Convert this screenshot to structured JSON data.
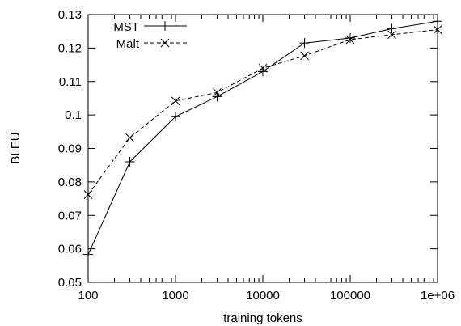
{
  "chart_data": {
    "type": "line",
    "title": "",
    "xlabel": "training tokens",
    "ylabel": "BLEU",
    "x_scale": "log",
    "xlim": [
      100,
      1000000
    ],
    "ylim": [
      0.05,
      0.13
    ],
    "xticks": [
      100,
      1000,
      10000,
      100000,
      1000000
    ],
    "xtick_labels": [
      "100",
      "1000",
      "10000",
      "100000",
      "1e+06"
    ],
    "yticks": [
      0.05,
      0.06,
      0.07,
      0.08,
      0.09,
      0.1,
      0.11,
      0.12,
      0.13
    ],
    "ytick_labels": [
      "0.05",
      "0.06",
      "0.07",
      "0.08",
      "0.09",
      "0.1",
      "0.11",
      "0.12",
      "0.13"
    ],
    "grid": false,
    "legend_position": "top-left",
    "series": [
      {
        "name": "MST",
        "line_style": "solid",
        "marker": "+",
        "x": [
          100,
          300,
          1000,
          3000,
          10000,
          30000,
          100000,
          300000,
          1000000
        ],
        "y": [
          0.0583,
          0.086,
          0.0995,
          0.1055,
          0.113,
          0.1215,
          0.123,
          0.1258,
          0.128
        ]
      },
      {
        "name": "Malt",
        "line_style": "dashed",
        "marker": "x",
        "x": [
          100,
          300,
          1000,
          3000,
          10000,
          30000,
          100000,
          300000,
          1000000
        ],
        "y": [
          0.0762,
          0.0932,
          0.1042,
          0.1067,
          0.114,
          0.1177,
          0.1225,
          0.124,
          0.1255
        ]
      }
    ]
  }
}
